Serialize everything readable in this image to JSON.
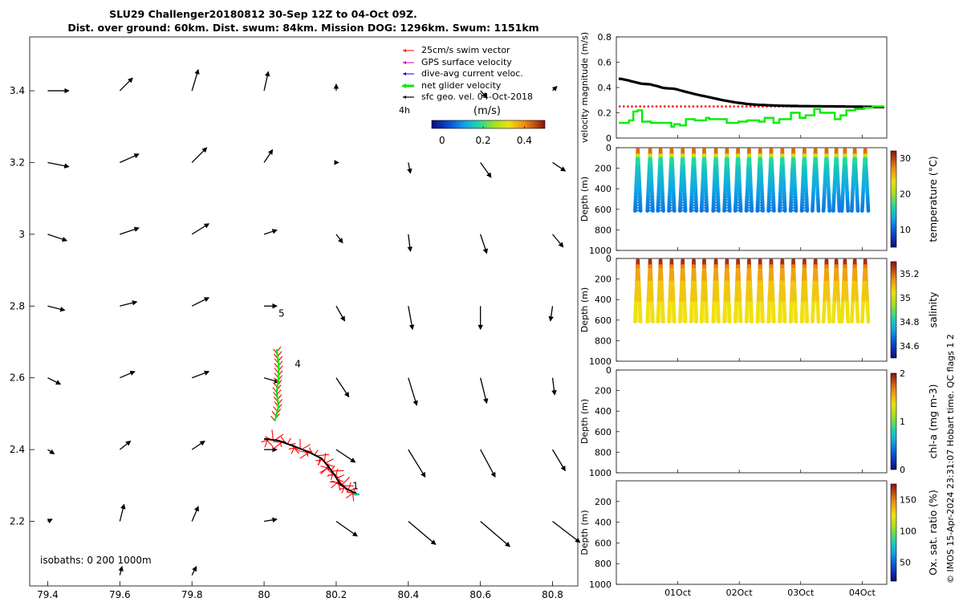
{
  "header": {
    "title_line1": "SLU29 Challenger20180812 30-Sep 12Z to 04-Oct 09Z.",
    "title_line2": "Dist. over ground: 60km. Dist. swum: 84km. Mission DOG: 1296km. Swum: 1151km"
  },
  "credit": "© IMOS 15-Apr-2024 23:31:07 Hobart time. QC flags 1  2",
  "colors": {
    "swim": "#ff0000",
    "gps": "#cc00cc",
    "dive": "#0000ff",
    "net": "#00ee00",
    "geo": "#000000",
    "track": "#000000",
    "track_fill": "#ff0000"
  },
  "chart_data": [
    {
      "type": "quiver_map",
      "name": "track-map",
      "xlim": [
        79.35,
        80.87
      ],
      "ylim": [
        2.02,
        3.55
      ],
      "xticks": [
        "79.4",
        "79.6",
        "79.8",
        "80",
        "80.2",
        "80.4",
        "80.6",
        "80.8"
      ],
      "xtick_values": [
        79.4,
        79.6,
        79.8,
        80.0,
        80.2,
        80.4,
        80.6,
        80.8
      ],
      "yticks": [
        "2.2",
        "2.4",
        "2.6",
        "2.8",
        "3",
        "3.2",
        "3.4"
      ],
      "ytick_values": [
        2.2,
        2.4,
        2.6,
        2.8,
        3.0,
        3.2,
        3.4
      ],
      "legend": {
        "items": [
          {
            "key": "swim",
            "label": "25cm/s swim vector"
          },
          {
            "key": "gps",
            "label": "GPS surface velocity"
          },
          {
            "key": "dive",
            "label": "dive-avg current veloc."
          },
          {
            "key": "net",
            "label": "net glider velocity"
          },
          {
            "key": "geo",
            "label": "sfc geo. vel. 04-Oct-2018"
          }
        ],
        "scale_label": "4h",
        "colorbar_title": "(m/s)",
        "colorbar_ticks": [
          "0",
          "0.2",
          "0.4"
        ],
        "colorbar_tick_values": [
          0,
          0.2,
          0.4
        ],
        "colorbar_range": [
          -0.05,
          0.5
        ]
      },
      "isobaths_label": "isobaths: 0   200  1000m",
      "annotations": [
        {
          "text": "1",
          "lon": 80.245,
          "lat": 2.29
        },
        {
          "text": "4",
          "lon": 80.085,
          "lat": 2.63
        },
        {
          "text": "5",
          "lon": 80.04,
          "lat": 2.77
        }
      ],
      "track": [
        [
          80.0,
          2.43
        ],
        [
          80.04,
          2.425
        ],
        [
          80.08,
          2.41
        ],
        [
          80.12,
          2.395
        ],
        [
          80.16,
          2.375
        ],
        [
          80.18,
          2.35
        ],
        [
          80.195,
          2.33
        ],
        [
          80.21,
          2.305
        ],
        [
          80.23,
          2.29
        ],
        [
          80.26,
          2.275
        ]
      ],
      "north_track": [
        [
          80.03,
          2.48
        ],
        [
          80.04,
          2.52
        ],
        [
          80.035,
          2.56
        ],
        [
          80.04,
          2.6
        ],
        [
          80.04,
          2.64
        ],
        [
          80.035,
          2.68
        ]
      ],
      "geo_vectors": [
        {
          "lon": 79.4,
          "lat": 3.4,
          "u": 0.1,
          "v": 0.0
        },
        {
          "lon": 79.6,
          "lat": 3.4,
          "u": 0.06,
          "v": 0.06
        },
        {
          "lon": 79.8,
          "lat": 3.4,
          "u": 0.03,
          "v": 0.1
        },
        {
          "lon": 80.0,
          "lat": 3.4,
          "u": 0.02,
          "v": 0.09
        },
        {
          "lon": 80.2,
          "lat": 3.4,
          "u": 0.0,
          "v": 0.03
        },
        {
          "lon": 80.6,
          "lat": 3.4,
          "u": 0.03,
          "v": -0.03
        },
        {
          "lon": 80.8,
          "lat": 3.4,
          "u": 0.02,
          "v": 0.02
        },
        {
          "lon": 79.4,
          "lat": 3.2,
          "u": 0.1,
          "v": -0.02
        },
        {
          "lon": 79.6,
          "lat": 3.2,
          "u": 0.09,
          "v": 0.04
        },
        {
          "lon": 79.8,
          "lat": 3.2,
          "u": 0.07,
          "v": 0.07
        },
        {
          "lon": 80.0,
          "lat": 3.2,
          "u": 0.04,
          "v": 0.06
        },
        {
          "lon": 80.2,
          "lat": 3.2,
          "u": 0.01,
          "v": 0.0
        },
        {
          "lon": 80.4,
          "lat": 3.2,
          "u": 0.01,
          "v": -0.05
        },
        {
          "lon": 80.6,
          "lat": 3.2,
          "u": 0.05,
          "v": -0.07
        },
        {
          "lon": 80.8,
          "lat": 3.2,
          "u": 0.06,
          "v": -0.04
        },
        {
          "lon": 79.4,
          "lat": 3.0,
          "u": 0.09,
          "v": -0.03
        },
        {
          "lon": 79.6,
          "lat": 3.0,
          "u": 0.09,
          "v": 0.03
        },
        {
          "lon": 79.8,
          "lat": 3.0,
          "u": 0.08,
          "v": 0.05
        },
        {
          "lon": 80.0,
          "lat": 3.0,
          "u": 0.06,
          "v": 0.02
        },
        {
          "lon": 80.2,
          "lat": 3.0,
          "u": 0.03,
          "v": -0.04
        },
        {
          "lon": 80.4,
          "lat": 3.0,
          "u": 0.01,
          "v": -0.08
        },
        {
          "lon": 80.6,
          "lat": 3.0,
          "u": 0.03,
          "v": -0.09
        },
        {
          "lon": 80.8,
          "lat": 3.0,
          "u": 0.05,
          "v": -0.06
        },
        {
          "lon": 79.4,
          "lat": 2.8,
          "u": 0.08,
          "v": -0.02
        },
        {
          "lon": 79.6,
          "lat": 2.8,
          "u": 0.08,
          "v": 0.02
        },
        {
          "lon": 79.8,
          "lat": 2.8,
          "u": 0.08,
          "v": 0.04
        },
        {
          "lon": 80.0,
          "lat": 2.8,
          "u": 0.06,
          "v": 0.0
        },
        {
          "lon": 80.2,
          "lat": 2.8,
          "u": 0.04,
          "v": -0.07
        },
        {
          "lon": 80.4,
          "lat": 2.8,
          "u": 0.02,
          "v": -0.11
        },
        {
          "lon": 80.6,
          "lat": 2.8,
          "u": 0.0,
          "v": -0.11
        },
        {
          "lon": 80.8,
          "lat": 2.8,
          "u": -0.01,
          "v": -0.07
        },
        {
          "lon": 79.4,
          "lat": 2.6,
          "u": 0.06,
          "v": -0.03
        },
        {
          "lon": 79.6,
          "lat": 2.6,
          "u": 0.07,
          "v": 0.03
        },
        {
          "lon": 79.8,
          "lat": 2.6,
          "u": 0.08,
          "v": 0.03
        },
        {
          "lon": 80.0,
          "lat": 2.6,
          "u": 0.07,
          "v": -0.02
        },
        {
          "lon": 80.2,
          "lat": 2.6,
          "u": 0.06,
          "v": -0.09
        },
        {
          "lon": 80.4,
          "lat": 2.6,
          "u": 0.04,
          "v": -0.13
        },
        {
          "lon": 80.6,
          "lat": 2.6,
          "u": 0.03,
          "v": -0.12
        },
        {
          "lon": 80.8,
          "lat": 2.6,
          "u": 0.01,
          "v": -0.08
        },
        {
          "lon": 79.4,
          "lat": 2.4,
          "u": 0.03,
          "v": -0.02
        },
        {
          "lon": 79.6,
          "lat": 2.4,
          "u": 0.05,
          "v": 0.04
        },
        {
          "lon": 79.8,
          "lat": 2.4,
          "u": 0.06,
          "v": 0.04
        },
        {
          "lon": 80.0,
          "lat": 2.4,
          "u": 0.06,
          "v": 0.0
        },
        {
          "lon": 80.2,
          "lat": 2.4,
          "u": 0.09,
          "v": -0.06
        },
        {
          "lon": 80.4,
          "lat": 2.4,
          "u": 0.08,
          "v": -0.13
        },
        {
          "lon": 80.6,
          "lat": 2.4,
          "u": 0.07,
          "v": -0.13
        },
        {
          "lon": 80.8,
          "lat": 2.4,
          "u": 0.06,
          "v": -0.1
        },
        {
          "lon": 79.4,
          "lat": 2.2,
          "u": 0.02,
          "v": 0.01
        },
        {
          "lon": 79.6,
          "lat": 2.2,
          "u": 0.02,
          "v": 0.08
        },
        {
          "lon": 79.8,
          "lat": 2.2,
          "u": 0.03,
          "v": 0.07
        },
        {
          "lon": 80.0,
          "lat": 2.2,
          "u": 0.06,
          "v": 0.01
        },
        {
          "lon": 80.2,
          "lat": 2.2,
          "u": 0.1,
          "v": -0.07
        },
        {
          "lon": 80.4,
          "lat": 2.2,
          "u": 0.13,
          "v": -0.11
        },
        {
          "lon": 80.6,
          "lat": 2.2,
          "u": 0.14,
          "v": -0.12
        },
        {
          "lon": 80.8,
          "lat": 2.2,
          "u": 0.13,
          "v": -0.1
        },
        {
          "lon": 79.6,
          "lat": 2.05,
          "u": 0.01,
          "v": 0.04
        },
        {
          "lon": 79.8,
          "lat": 2.05,
          "u": 0.02,
          "v": 0.04
        }
      ]
    },
    {
      "type": "line",
      "name": "velocity-magnitude",
      "ylabel": "velocity magnitude (m/s)",
      "ylim": [
        0,
        0.8
      ],
      "yticks": [
        "0",
        "0.2",
        "0.4",
        "0.6",
        "0.8"
      ],
      "ytick_values": [
        0,
        0.2,
        0.4,
        0.6,
        0.8
      ],
      "series": [
        {
          "name": "sfc geo. vel.",
          "color": "#000000",
          "style": "thick",
          "x": [
            0,
            1,
            1.5,
            2,
            3,
            3.5,
            4,
            5,
            6,
            7,
            7.5,
            8,
            9,
            10,
            11,
            11.5,
            12,
            13,
            14,
            15,
            16,
            17,
            18,
            19,
            20,
            21,
            22,
            23,
            24,
            25,
            26,
            27,
            28,
            29,
            30,
            31,
            32,
            33,
            34,
            35,
            36,
            37,
            38,
            39,
            40,
            41,
            42,
            43,
            44,
            45,
            46,
            47,
            48,
            49,
            50,
            51,
            52,
            53,
            54,
            55,
            56,
            57,
            58,
            59,
            60,
            61,
            62,
            63,
            64,
            65,
            66,
            67,
            68,
            69,
            70,
            71,
            72,
            73,
            74,
            75,
            76,
            77,
            78,
            79,
            80,
            81,
            82,
            83,
            84,
            85,
            86,
            87,
            88,
            89,
            90,
            91
          ],
          "y": [
            0.47,
            0.467,
            0.465,
            0.462,
            0.458,
            0.455,
            0.451,
            0.446,
            0.44,
            0.434,
            0.432,
            0.43,
            0.428,
            0.426,
            0.424,
            0.42,
            0.417,
            0.412,
            0.405,
            0.398,
            0.395,
            0.393,
            0.392,
            0.39,
            0.385,
            0.378,
            0.372,
            0.366,
            0.36,
            0.354,
            0.348,
            0.343,
            0.338,
            0.333,
            0.328,
            0.323,
            0.318,
            0.313,
            0.308,
            0.303,
            0.298,
            0.294,
            0.29,
            0.286,
            0.282,
            0.279,
            0.276,
            0.273,
            0.27,
            0.268,
            0.266,
            0.264,
            0.263,
            0.262,
            0.261,
            0.26,
            0.259,
            0.258,
            0.257,
            0.256,
            0.256,
            0.255,
            0.255,
            0.254,
            0.254,
            0.254,
            0.253,
            0.253,
            0.253,
            0.253,
            0.252,
            0.252,
            0.252,
            0.252,
            0.251,
            0.251,
            0.251,
            0.251,
            0.25,
            0.25,
            0.25,
            0.25,
            0.249,
            0.249,
            0.249,
            0.248,
            0.248,
            0.248,
            0.247,
            0.247,
            0.247,
            0.247,
            0.246,
            0.246,
            0.246,
            0.246
          ]
        },
        {
          "name": "25cm/s swim vector",
          "color": "#ff0000",
          "style": "dots",
          "x": [
            0,
            91
          ],
          "y": [
            0.25,
            0.25
          ]
        },
        {
          "name": "net glider velocity",
          "color": "#00ee00",
          "style": "step",
          "x": [
            0,
            3.5,
            3.5,
            5,
            5,
            6.5,
            6.5,
            8,
            8,
            11,
            11,
            18,
            18,
            19,
            19,
            21,
            21,
            23,
            23,
            26,
            26,
            30,
            30,
            31,
            31,
            37,
            37,
            41,
            41,
            44,
            44,
            48,
            48,
            50,
            50,
            53,
            53,
            55,
            55,
            59,
            59,
            62,
            62,
            64,
            64,
            67,
            67,
            69,
            69,
            74,
            74,
            76,
            76,
            78,
            78,
            81,
            81,
            84,
            84,
            87,
            87,
            91
          ],
          "y": [
            0.12,
            0.12,
            0.14,
            0.14,
            0.21,
            0.21,
            0.22,
            0.22,
            0.13,
            0.13,
            0.12,
            0.12,
            0.09,
            0.09,
            0.11,
            0.11,
            0.1,
            0.1,
            0.15,
            0.15,
            0.14,
            0.14,
            0.16,
            0.16,
            0.15,
            0.15,
            0.12,
            0.12,
            0.13,
            0.13,
            0.14,
            0.14,
            0.13,
            0.13,
            0.16,
            0.16,
            0.12,
            0.12,
            0.15,
            0.15,
            0.2,
            0.2,
            0.16,
            0.16,
            0.18,
            0.18,
            0.23,
            0.23,
            0.2,
            0.2,
            0.15,
            0.15,
            0.18,
            0.18,
            0.22,
            0.22,
            0.23,
            0.23,
            0.24,
            0.24,
            0.25,
            0.25
          ]
        }
      ]
    },
    {
      "type": "section_scatter",
      "name": "temperature",
      "ylabel": "Depth (m)",
      "ylim": [
        1000,
        0
      ],
      "yticks": [
        "0",
        "200",
        "400",
        "600",
        "800",
        "1000"
      ],
      "ytick_values": [
        0,
        200,
        400,
        600,
        800,
        1000
      ],
      "colorbar_label": "temperature (°C)",
      "colorbar_ticks": [
        "10",
        "20",
        "30"
      ],
      "colorbar_tick_values": [
        10,
        20,
        30
      ],
      "colorbar_range": [
        5,
        32
      ],
      "profile_days": [
        0.35,
        0.55,
        0.72,
        0.9,
        1.08,
        1.26,
        1.43,
        1.62,
        1.8,
        1.98,
        2.16,
        2.34,
        2.52,
        2.7,
        2.88,
        3.06,
        3.24,
        3.42,
        3.58,
        3.72,
        3.88,
        4.05
      ],
      "gap_after_day": 3.1,
      "max_depth_m": 600
    },
    {
      "type": "section_scatter",
      "name": "salinity",
      "ylabel": "Depth (m)",
      "ylim": [
        1000,
        0
      ],
      "yticks": [
        "0",
        "200",
        "400",
        "600",
        "800",
        "1000"
      ],
      "ytick_values": [
        0,
        200,
        400,
        600,
        800,
        1000
      ],
      "colorbar_label": "salinity",
      "colorbar_ticks": [
        "34.6",
        "34.8",
        "35",
        "35.2"
      ],
      "colorbar_tick_values": [
        34.6,
        34.8,
        35.0,
        35.2
      ],
      "colorbar_range": [
        34.5,
        35.3
      ],
      "max_depth_m": 600
    },
    {
      "type": "section_scatter",
      "name": "chl-a",
      "ylabel": "Depth (m)",
      "ylim": [
        1000,
        0
      ],
      "yticks": [
        "0",
        "200",
        "400",
        "600",
        "800",
        "1000"
      ],
      "ytick_values": [
        0,
        200,
        400,
        600,
        800,
        1000
      ],
      "colorbar_label": "chl-a (mg m-3)",
      "colorbar_ticks": [
        "0",
        "1",
        "2"
      ],
      "colorbar_tick_values": [
        0,
        1,
        2
      ],
      "colorbar_range": [
        0,
        2
      ]
    },
    {
      "type": "section_scatter",
      "name": "oxygen",
      "ylabel": "Depth (m)",
      "ylim": [
        1000,
        0
      ],
      "yticks": [
        "200",
        "400",
        "600",
        "800",
        "1000"
      ],
      "ytick_values": [
        200,
        400,
        600,
        800,
        1000
      ],
      "colorbar_label": "Ox. sat. ratio (%)",
      "colorbar_ticks": [
        "50",
        "100",
        "150"
      ],
      "colorbar_tick_values": [
        50,
        100,
        150
      ],
      "colorbar_range": [
        20,
        175
      ],
      "xticks": [
        "01Oct",
        "02Oct",
        "03Oct",
        "04Oct"
      ],
      "xtick_values": [
        1,
        2,
        3,
        4
      ],
      "xlim": [
        0.0,
        4.4
      ]
    }
  ]
}
